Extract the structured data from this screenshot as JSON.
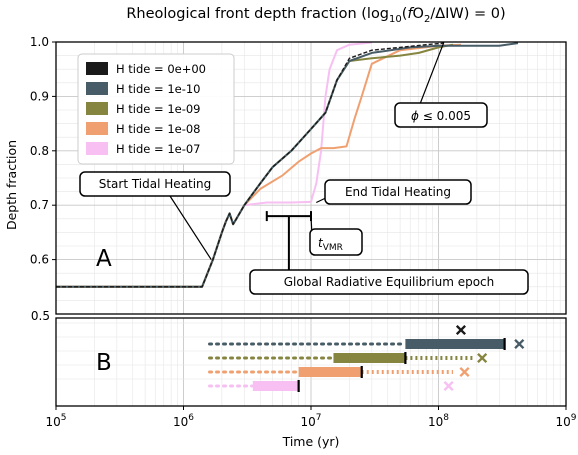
{
  "chart_data": {
    "type": "line",
    "title": "Rheological front depth fraction (log10(fO2/ΔIW) = 0)",
    "title_parts": {
      "prefix": "Rheological front depth fraction (log",
      "sub": "10",
      "mid": "(",
      "italic": "f",
      "suffix": "O",
      "sub2": "2",
      "end": "/ΔIW) = 0)"
    },
    "xlabel": "Time (yr)",
    "ylabel": "Depth fraction",
    "x_scale": "log",
    "xlim": [
      100000,
      1000000000
    ],
    "ylim": [
      0.5,
      1.0
    ],
    "grid": true,
    "legend_position": "top-left",
    "x_ticks": [
      {
        "value": 100000,
        "base": "10",
        "exp": "5"
      },
      {
        "value": 1000000,
        "base": "10",
        "exp": "6"
      },
      {
        "value": 10000000,
        "base": "10",
        "exp": "7"
      },
      {
        "value": 100000000,
        "base": "10",
        "exp": "8"
      },
      {
        "value": 1000000000,
        "base": "10",
        "exp": "9"
      }
    ],
    "y_ticks": [
      {
        "value": 0.6,
        "label": "0.6"
      },
      {
        "value": 0.7,
        "label": "0.7"
      },
      {
        "value": 0.8,
        "label": "0.8"
      },
      {
        "value": 0.9,
        "label": "0.9"
      },
      {
        "value": 1.0,
        "label": "1.0"
      }
    ],
    "lower_tick_label": "0.5",
    "panel_labels": {
      "a": "A",
      "b": "B"
    },
    "series": [
      {
        "name": "H tide = 0e+00",
        "color": "#1a1a1a",
        "dashed": true,
        "points": [
          [
            100000,
            0.55
          ],
          [
            1400000,
            0.55
          ],
          [
            1700000,
            0.6
          ],
          [
            2000000,
            0.65
          ],
          [
            2150000,
            0.67
          ],
          [
            2300000,
            0.685
          ],
          [
            2450000,
            0.665
          ],
          [
            2600000,
            0.675
          ],
          [
            3000000,
            0.7
          ],
          [
            4000000,
            0.74
          ],
          [
            5000000,
            0.77
          ],
          [
            7000000,
            0.8
          ],
          [
            10000000,
            0.84
          ],
          [
            13000000,
            0.87
          ],
          [
            16000000,
            0.93
          ],
          [
            20000000,
            0.97
          ],
          [
            30000000,
            0.985
          ],
          [
            50000000,
            0.99
          ],
          [
            80000000,
            0.995
          ],
          [
            110000000,
            0.998
          ]
        ],
        "phase_b": {
          "row": 0,
          "marker_x": 150000000
        }
      },
      {
        "name": "H tide = 1e-10",
        "color": "#475c66",
        "points": [
          [
            100000,
            0.55
          ],
          [
            1400000,
            0.55
          ],
          [
            1700000,
            0.6
          ],
          [
            2000000,
            0.65
          ],
          [
            2150000,
            0.67
          ],
          [
            2300000,
            0.685
          ],
          [
            2450000,
            0.665
          ],
          [
            2600000,
            0.675
          ],
          [
            3000000,
            0.7
          ],
          [
            4000000,
            0.74
          ],
          [
            5000000,
            0.77
          ],
          [
            7000000,
            0.8
          ],
          [
            10000000,
            0.84
          ],
          [
            13000000,
            0.87
          ],
          [
            16000000,
            0.93
          ],
          [
            20000000,
            0.965
          ],
          [
            30000000,
            0.98
          ],
          [
            60000000,
            0.99
          ],
          [
            100000000,
            0.993
          ],
          [
            200000000,
            0.993
          ],
          [
            300000000,
            0.993
          ],
          [
            420000000,
            0.998
          ]
        ],
        "phase_b": {
          "row": 1,
          "dot_start": 1600000,
          "bar_start": 55000000,
          "bar_end": 330000000,
          "tick_x": 330000000,
          "marker_x": 430000000
        }
      },
      {
        "name": "H tide = 1e-09",
        "color": "#858540",
        "points": [
          [
            100000,
            0.55
          ],
          [
            1400000,
            0.55
          ],
          [
            1700000,
            0.6
          ],
          [
            2000000,
            0.65
          ],
          [
            2150000,
            0.67
          ],
          [
            2300000,
            0.685
          ],
          [
            2450000,
            0.665
          ],
          [
            2600000,
            0.675
          ],
          [
            3000000,
            0.7
          ],
          [
            4000000,
            0.74
          ],
          [
            5000000,
            0.77
          ],
          [
            7000000,
            0.8
          ],
          [
            10000000,
            0.84
          ],
          [
            13000000,
            0.87
          ],
          [
            16000000,
            0.93
          ],
          [
            20000000,
            0.965
          ],
          [
            30000000,
            0.97
          ],
          [
            50000000,
            0.975
          ],
          [
            70000000,
            0.98
          ],
          [
            100000000,
            0.99
          ],
          [
            130000000,
            0.995
          ]
        ],
        "phase_b": {
          "row": 2,
          "dot_start": 1600000,
          "bar_start": 15000000,
          "bar_end": 55000000,
          "tick_x": 55000000,
          "dot_end": 190000000,
          "marker_x": 220000000
        }
      },
      {
        "name": "H tide = 1e-08",
        "color": "#f0a070",
        "points": [
          [
            100000,
            0.55
          ],
          [
            1400000,
            0.55
          ],
          [
            1700000,
            0.6
          ],
          [
            2000000,
            0.65
          ],
          [
            2150000,
            0.67
          ],
          [
            2300000,
            0.685
          ],
          [
            2450000,
            0.665
          ],
          [
            2600000,
            0.675
          ],
          [
            3000000,
            0.7
          ],
          [
            4000000,
            0.73
          ],
          [
            6000000,
            0.755
          ],
          [
            8000000,
            0.78
          ],
          [
            10000000,
            0.795
          ],
          [
            12000000,
            0.805
          ],
          [
            15000000,
            0.805
          ],
          [
            19000000,
            0.808
          ],
          [
            22000000,
            0.86
          ],
          [
            25000000,
            0.9
          ],
          [
            30000000,
            0.96
          ],
          [
            50000000,
            0.985
          ],
          [
            100000000,
            0.993
          ],
          [
            150000000,
            0.995
          ]
        ],
        "phase_b": {
          "row": 3,
          "dot_start": 1600000,
          "bar_start": 8000000,
          "bar_end": 25000000,
          "tick_x": 25000000,
          "dot_end": 130000000,
          "marker_x": 160000000
        }
      },
      {
        "name": "H tide = 1e-07",
        "color": "#f7bff2",
        "points": [
          [
            100000,
            0.55
          ],
          [
            1400000,
            0.55
          ],
          [
            1700000,
            0.6
          ],
          [
            2000000,
            0.65
          ],
          [
            2150000,
            0.67
          ],
          [
            2300000,
            0.685
          ],
          [
            2450000,
            0.665
          ],
          [
            2600000,
            0.675
          ],
          [
            3000000,
            0.7
          ],
          [
            4500000,
            0.705
          ],
          [
            7000000,
            0.705
          ],
          [
            10000000,
            0.706
          ],
          [
            11000000,
            0.74
          ],
          [
            12000000,
            0.8
          ],
          [
            13000000,
            0.9
          ],
          [
            14000000,
            0.95
          ],
          [
            16000000,
            0.985
          ],
          [
            20000000,
            0.995
          ],
          [
            30000000,
            0.999
          ]
        ],
        "phase_b": {
          "row": 4,
          "dot_start": 1600000,
          "bar_start": 3500000,
          "bar_end": 8000000,
          "tick_x": 8000000,
          "marker_x": 120000000
        }
      }
    ],
    "annotations": {
      "start_tidal": {
        "text": "Start Tidal Heating",
        "target": [
          1650000,
          0.6
        ]
      },
      "end_tidal": {
        "text": "End Tidal Heating",
        "target": [
          11000000,
          0.705
        ]
      },
      "phi": {
        "text_main": "ϕ ≤  0.005",
        "symbol": "ϕ",
        "rest": " ≤  0.005",
        "target": [
          110000000,
          0.999
        ]
      },
      "t_vmr": {
        "main": "t",
        "sub": "VMR",
        "span": [
          4500000,
          10000000
        ],
        "y": 0.68
      },
      "global_eq": {
        "text": "Global Radiative Equilibrium epoch"
      }
    }
  }
}
